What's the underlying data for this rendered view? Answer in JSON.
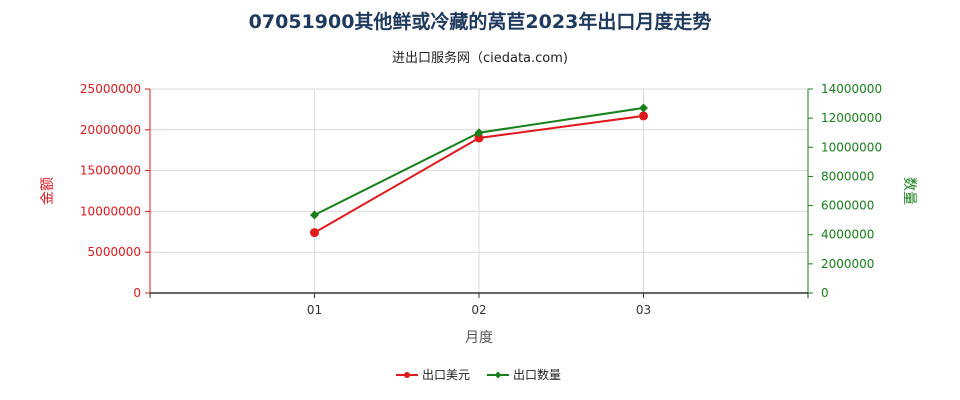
{
  "chart_data": {
    "type": "line",
    "title": "07051900其他鲜或冷藏的莴苣2023年出口月度走势",
    "subtitle": "进出口服务网（ciedata.com)",
    "xlabel": "月度",
    "ylabel_left": "金额",
    "ylabel_right": "数量",
    "categories": [
      "01",
      "02",
      "03"
    ],
    "ylim_left": [
      0,
      25000000
    ],
    "ylim_right": [
      0,
      14000000
    ],
    "left_ticks": [
      "0",
      "5000000",
      "10000000",
      "15000000",
      "20000000",
      "25000000"
    ],
    "right_ticks": [
      "0",
      "2000000",
      "4000000",
      "6000000",
      "8000000",
      "10000000",
      "12000000",
      "14000000"
    ],
    "grid": true,
    "legend_position": "bottom",
    "series": [
      {
        "name": "出口美元",
        "axis": "left",
        "color": "#e0191c",
        "marker": "circle",
        "values": [
          7400000,
          19000000,
          21700000
        ]
      },
      {
        "name": "出口数量",
        "axis": "right",
        "color": "#18801a",
        "marker": "diamond",
        "values": [
          5350000,
          11000000,
          12700000
        ]
      }
    ],
    "colors": {
      "left_axis": "#e0191c",
      "right_axis": "#18801a",
      "grid": "#d9d9d9"
    }
  }
}
